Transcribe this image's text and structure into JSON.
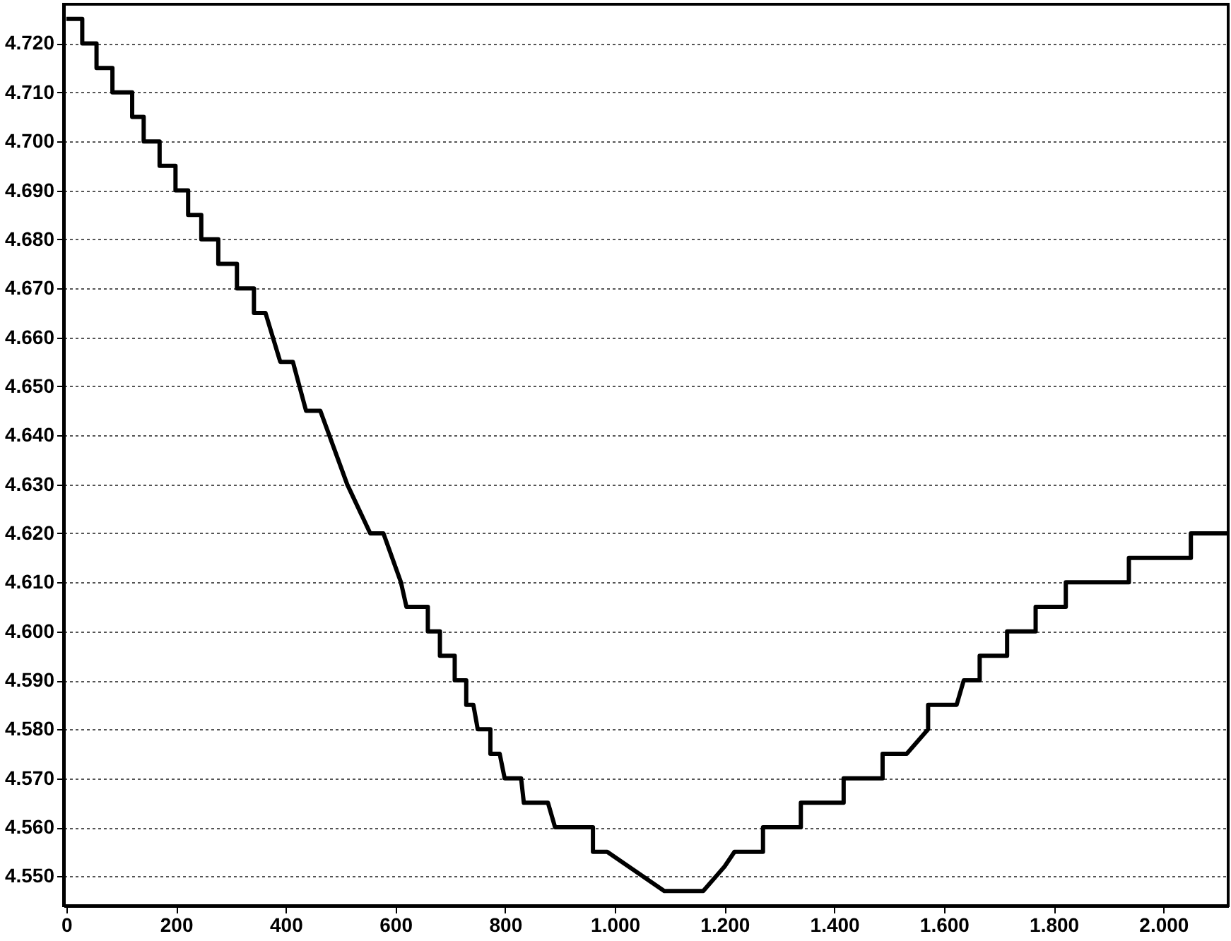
{
  "chart_data": {
    "type": "line",
    "color": "#000000",
    "grid": "y",
    "line_style": "solid",
    "marker": "none",
    "x": [
      0,
      29,
      29,
      55,
      55,
      84,
      84,
      120,
      120,
      141,
      141,
      170,
      170,
      199,
      199,
      222,
      222,
      246,
      246,
      277,
      277,
      311,
      311,
      342,
      342,
      363,
      390,
      413,
      437,
      463,
      512,
      554,
      578,
      610,
      620,
      659,
      659,
      681,
      681,
      708,
      708,
      729,
      729,
      742,
      750,
      773,
      773,
      790,
      799,
      829,
      834,
      878,
      891,
      960,
      960,
      986,
      1090,
      1161,
      1200,
      1218,
      1270,
      1270,
      1339,
      1339,
      1417,
      1417,
      1488,
      1488,
      1532,
      1571,
      1571,
      1623,
      1636,
      1665,
      1665,
      1715,
      1715,
      1767,
      1767,
      1822,
      1822,
      1937,
      1937,
      2050,
      2050,
      2118
    ],
    "values": [
      4725,
      4725,
      4720,
      4720,
      4715,
      4715,
      4710,
      4710,
      4705,
      4705,
      4700,
      4700,
      4695,
      4695,
      4690,
      4690,
      4685,
      4685,
      4680,
      4680,
      4675,
      4675,
      4670,
      4670,
      4665,
      4665,
      4655,
      4655,
      4645,
      4645,
      4630,
      4620,
      4620,
      4610,
      4605,
      4605,
      4600,
      4600,
      4595,
      4595,
      4590,
      4590,
      4585,
      4585,
      4580,
      4580,
      4575,
      4575,
      4570,
      4570,
      4565,
      4565,
      4560,
      4560,
      4555,
      4555,
      4547,
      4547,
      4552,
      4555,
      4555,
      4560,
      4560,
      4565,
      4565,
      4570,
      4570,
      4575,
      4575,
      4580,
      4585,
      4585,
      4590,
      4590,
      4595,
      4595,
      4600,
      4600,
      4605,
      4605,
      4610,
      4610,
      4615,
      4615,
      4620,
      4620
    ],
    "xlim": [
      -5,
      2118
    ],
    "ylim": [
      4544,
      4728
    ],
    "xticks": [
      0,
      200,
      400,
      600,
      800,
      {
        "value": 1000,
        "label": "1.000"
      },
      {
        "value": 1200,
        "label": "1.200"
      },
      {
        "value": 1400,
        "label": "1.400"
      },
      {
        "value": 1600,
        "label": "1.600"
      },
      {
        "value": 1800,
        "label": "1.800"
      },
      {
        "value": 2000,
        "label": "2.000"
      }
    ],
    "yticks": [
      {
        "value": 4550,
        "label": "4.550"
      },
      {
        "value": 4560,
        "label": "4.560"
      },
      {
        "value": 4570,
        "label": "4.570"
      },
      {
        "value": 4580,
        "label": "4.580"
      },
      {
        "value": 4590,
        "label": "4.590"
      },
      {
        "value": 4600,
        "label": "4.600"
      },
      {
        "value": 4610,
        "label": "4.610"
      },
      {
        "value": 4620,
        "label": "4.620"
      },
      {
        "value": 4630,
        "label": "4.630"
      },
      {
        "value": 4640,
        "label": "4.640"
      },
      {
        "value": 4650,
        "label": "4.650"
      },
      {
        "value": 4660,
        "label": "4.660"
      },
      {
        "value": 4670,
        "label": "4.670"
      },
      {
        "value": 4680,
        "label": "4.680"
      },
      {
        "value": 4690,
        "label": "4.690"
      },
      {
        "value": 4700,
        "label": "4.700"
      },
      {
        "value": 4710,
        "label": "4.710"
      },
      {
        "value": 4720,
        "label": "4.720"
      }
    ]
  }
}
